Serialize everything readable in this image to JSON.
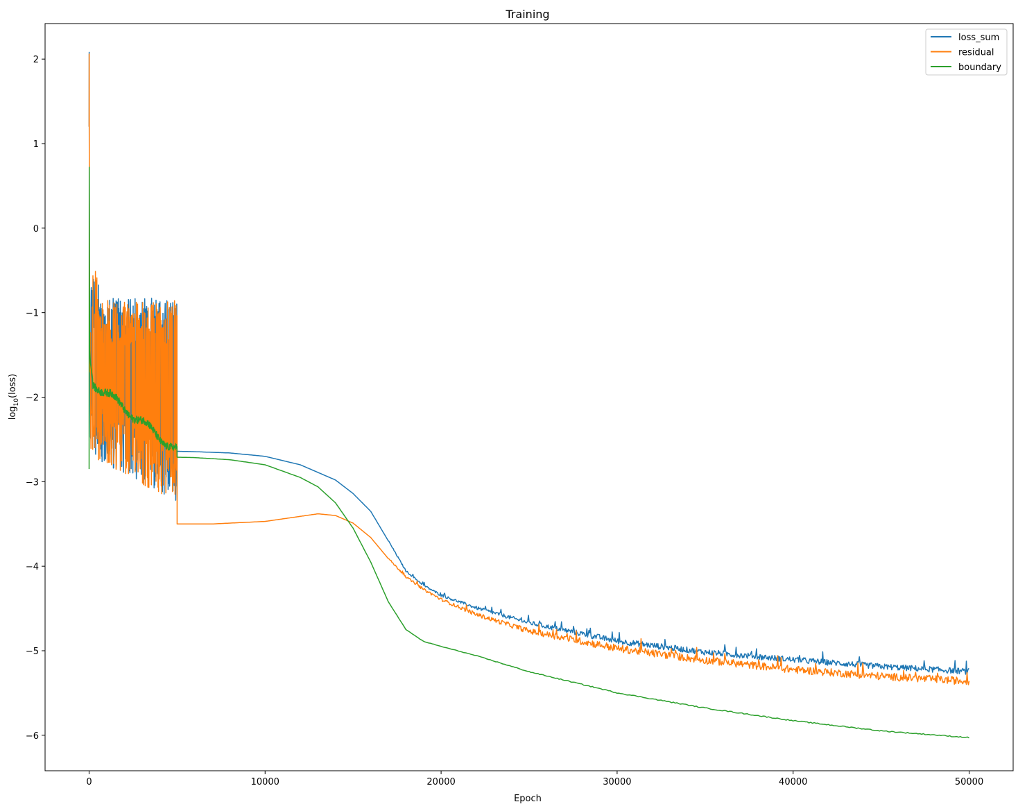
{
  "chart_data": {
    "type": "line",
    "title": "Training",
    "xlabel": "Epoch",
    "ylabel_base": "log",
    "ylabel_sub": "10",
    "ylabel_rest": "(loss)",
    "xlim": [
      -2500,
      52500
    ],
    "ylim": [
      -6.42,
      2.42
    ],
    "x_ticks": [
      0,
      10000,
      20000,
      30000,
      40000,
      50000
    ],
    "x_tick_labels": [
      "0",
      "10000",
      "20000",
      "30000",
      "40000",
      "50000"
    ],
    "y_ticks": [
      2,
      1,
      0,
      -1,
      -2,
      -3,
      -4,
      -5,
      -6
    ],
    "y_tick_labels": [
      "2",
      "1",
      "0",
      "−1",
      "−2",
      "−3",
      "−4",
      "−5",
      "−6"
    ],
    "grid": false,
    "legend_position": "upper-right",
    "noisy_phase_end": 5000,
    "series": [
      {
        "name": "loss_sum",
        "color": "#1f77b4",
        "x": [
          5000,
          6000,
          8000,
          10000,
          12000,
          14000,
          15000,
          16000,
          17000,
          18000,
          19000,
          20000,
          22000,
          25000,
          30000,
          35000,
          40000,
          45000,
          50000
        ],
        "y": [
          -2.64,
          -2.645,
          -2.66,
          -2.7,
          -2.8,
          -2.98,
          -3.14,
          -3.35,
          -3.7,
          -4.06,
          -4.23,
          -4.35,
          -4.5,
          -4.68,
          -4.9,
          -5.03,
          -5.12,
          -5.2,
          -5.26
        ],
        "noise_after": 0.035
      },
      {
        "name": "residual",
        "color": "#ff7f0e",
        "x": [
          5000,
          7000,
          10000,
          12000,
          13000,
          14000,
          15000,
          16000,
          17000,
          18000,
          19000,
          20000,
          22000,
          25000,
          30000,
          35000,
          40000,
          45000,
          50000
        ],
        "y": [
          -3.5,
          -3.5,
          -3.47,
          -3.41,
          -3.38,
          -3.4,
          -3.49,
          -3.66,
          -3.91,
          -4.13,
          -4.28,
          -4.4,
          -4.58,
          -4.78,
          -4.99,
          -5.13,
          -5.24,
          -5.32,
          -5.38
        ],
        "noise_after": 0.045
      },
      {
        "name": "boundary",
        "color": "#2ca02c",
        "x": [
          5000,
          6000,
          8000,
          10000,
          12000,
          13000,
          14000,
          15000,
          16000,
          17000,
          18000,
          19000,
          20000,
          22000,
          25000,
          30000,
          35000,
          40000,
          45000,
          50000
        ],
        "y": [
          -2.71,
          -2.715,
          -2.74,
          -2.8,
          -2.95,
          -3.06,
          -3.25,
          -3.55,
          -3.95,
          -4.42,
          -4.75,
          -4.89,
          -4.95,
          -5.06,
          -5.25,
          -5.5,
          -5.68,
          -5.83,
          -5.95,
          -6.03
        ],
        "noise_after": 0.006
      }
    ]
  }
}
